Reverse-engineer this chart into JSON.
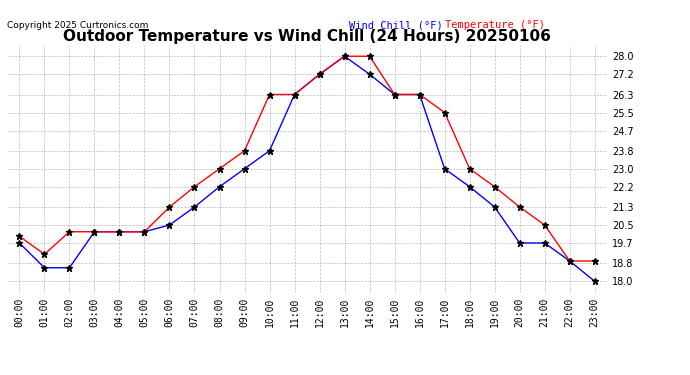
{
  "title": "Outdoor Temperature vs Wind Chill (24 Hours) 20250106",
  "copyright": "Copyright 2025 Curtronics.com",
  "legend_wind_chill": "Wind Chill (°F)",
  "legend_temperature": "Temperature (°F)",
  "hours": [
    "00:00",
    "01:00",
    "02:00",
    "03:00",
    "04:00",
    "05:00",
    "06:00",
    "07:00",
    "08:00",
    "09:00",
    "10:00",
    "11:00",
    "12:00",
    "13:00",
    "14:00",
    "15:00",
    "16:00",
    "17:00",
    "18:00",
    "19:00",
    "20:00",
    "21:00",
    "22:00",
    "23:00"
  ],
  "temperature": [
    20.0,
    19.2,
    20.2,
    20.2,
    20.2,
    20.2,
    21.3,
    22.2,
    23.0,
    23.8,
    26.3,
    26.3,
    27.2,
    28.0,
    28.0,
    26.3,
    26.3,
    25.5,
    23.0,
    22.2,
    21.3,
    20.5,
    18.9,
    18.9
  ],
  "wind_chill": [
    19.7,
    18.6,
    18.6,
    20.2,
    20.2,
    20.2,
    20.5,
    21.3,
    22.2,
    23.0,
    23.8,
    26.3,
    27.2,
    28.0,
    27.2,
    26.3,
    26.3,
    23.0,
    22.2,
    21.3,
    19.7,
    19.7,
    18.9,
    18.0
  ],
  "ylim": [
    17.5,
    28.5
  ],
  "yticks": [
    18.0,
    18.8,
    19.7,
    20.5,
    21.3,
    22.2,
    23.0,
    23.8,
    24.7,
    25.5,
    26.3,
    27.2,
    28.0
  ],
  "temp_color": "#ff0000",
  "wind_chill_color": "#0000ff",
  "bg_color": "#ffffff",
  "grid_color": "#bbbbbb",
  "title_fontsize": 11,
  "tick_fontsize": 7,
  "marker": "*",
  "marker_size": 5
}
